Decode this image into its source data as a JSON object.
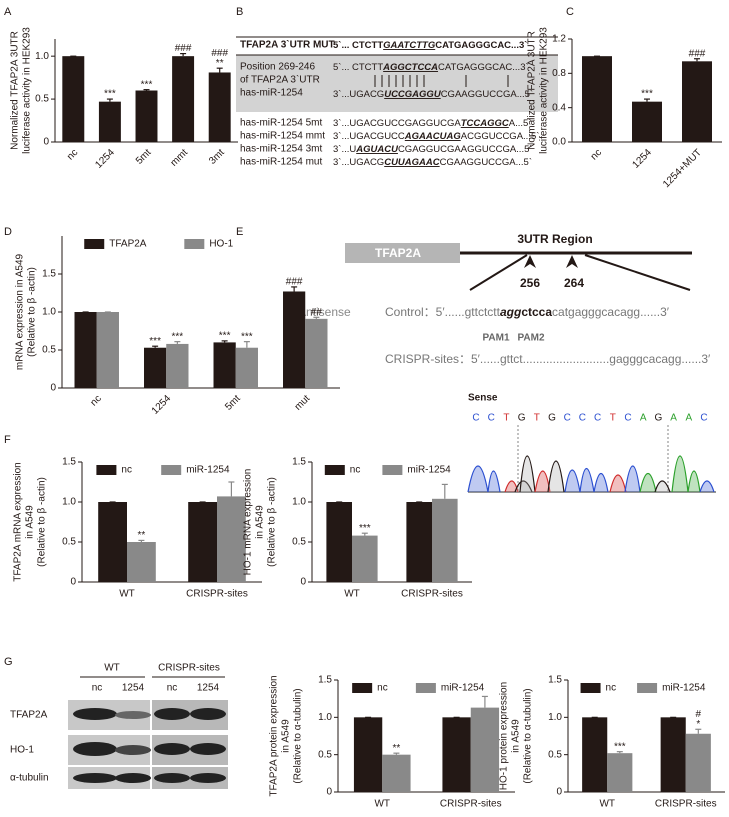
{
  "panel_labels": [
    "A",
    "B",
    "C",
    "D",
    "E",
    "F",
    "G"
  ],
  "chart_data": [
    {
      "type": "bar",
      "ylabel": [
        "Normalized TFAP2A 3UTR",
        "luciferase activity in HEK293"
      ],
      "categories": [
        "nc",
        "1254",
        "5mt",
        "mmt",
        "3mt"
      ],
      "series": [
        {
          "color": "#231815",
          "values": [
            1.0,
            0.47,
            0.6,
            1.0,
            0.81
          ],
          "errors": [
            0,
            0.03,
            0.01,
            0.03,
            0.05
          ],
          "sig": [
            null,
            "***",
            "***",
            "###",
            [
              "###",
              "**"
            ]
          ]
        }
      ],
      "ylim": [
        0,
        1.2
      ],
      "yticks": [
        0,
        0.5,
        {
          "value": 1,
          "label": "1.0"
        }
      ]
    },
    {
      "type": "bar",
      "ylabel": [
        "Normalized TFAP2A 3UTR",
        "luciferase activity in HEK293"
      ],
      "categories": [
        "nc",
        "1254",
        "1254+MUT"
      ],
      "series": [
        {
          "color": "#231815",
          "values": [
            1.0,
            0.47,
            0.94
          ],
          "errors": [
            0,
            0.03,
            0.03
          ],
          "sig": [
            null,
            "***",
            "###"
          ]
        }
      ],
      "ylim": [
        0,
        1.2
      ],
      "yticks": [
        {
          "value": 0,
          "label": "0.0"
        },
        0.4,
        0.8,
        1.2
      ]
    },
    {
      "type": "bar",
      "ylabel": [
        "mRNA expression in A549",
        "(Relative to β -actin)"
      ],
      "categories": [
        "nc",
        "1254",
        "5mt",
        "mut"
      ],
      "legend": "top",
      "series": [
        {
          "name": "TFAP2A",
          "color": "#231815",
          "values": [
            1.0,
            0.53,
            0.6,
            1.27
          ],
          "errors": [
            0,
            0.02,
            0.02,
            0.06
          ],
          "sig": [
            null,
            "***",
            "***",
            "###"
          ]
        },
        {
          "name": "HO-1",
          "color": "#898989",
          "values": [
            1.0,
            0.58,
            0.53,
            0.91
          ],
          "errors": [
            0,
            0.03,
            0.08,
            0.02
          ],
          "sig": [
            null,
            "***",
            "***",
            "##"
          ]
        }
      ],
      "ylim": [
        0,
        2.0
      ],
      "yticks": [
        0,
        0.5,
        {
          "value": 1,
          "label": "1.0"
        },
        1.5
      ]
    },
    {
      "type": "bar",
      "ylabel": [
        "TFAP2A mRNA expression",
        "in A549",
        "(Relative to β -actin)"
      ],
      "categories": [
        "WT",
        "CRISPR-sites"
      ],
      "legend": "top",
      "series": [
        {
          "name": "nc",
          "color": "#231815",
          "values": [
            1.0,
            1.0
          ],
          "errors": [
            0,
            0
          ],
          "sig": [
            null,
            null
          ]
        },
        {
          "name": "miR-1254",
          "color": "#898989",
          "values": [
            0.5,
            1.07
          ],
          "errors": [
            0.02,
            0.18
          ],
          "sig": [
            "**",
            null
          ]
        }
      ],
      "ylim": [
        0,
        1.5
      ],
      "yticks": [
        0,
        0.5,
        {
          "value": 1,
          "label": "1.0"
        },
        1.5
      ]
    },
    {
      "type": "bar",
      "ylabel": [
        "HO-1 mRNA expression",
        "in A549",
        "(Relative to β -actin)"
      ],
      "categories": [
        "WT",
        "CRISPR-sites"
      ],
      "legend": "top",
      "series": [
        {
          "name": "nc",
          "color": "#231815",
          "values": [
            1.0,
            1.0
          ],
          "errors": [
            0,
            0
          ],
          "sig": [
            null,
            null
          ]
        },
        {
          "name": "miR-1254",
          "color": "#898989",
          "values": [
            0.58,
            1.04
          ],
          "errors": [
            0.03,
            0.18
          ],
          "sig": [
            "***",
            null
          ]
        }
      ],
      "ylim": [
        0,
        1.5
      ],
      "yticks": [
        0,
        0.5,
        {
          "value": 1,
          "label": "1.0"
        },
        1.5
      ]
    },
    {
      "type": "bar",
      "ylabel": [
        "TFAP2A protein expression",
        "in A549",
        "(Relative to α-tubulin)"
      ],
      "categories": [
        "WT",
        "CRISPR-sites"
      ],
      "legend": "top",
      "series": [
        {
          "name": "nc",
          "color": "#231815",
          "values": [
            1.0,
            1.0
          ],
          "errors": [
            0,
            0
          ],
          "sig": [
            null,
            null
          ]
        },
        {
          "name": "miR-1254",
          "color": "#898989",
          "values": [
            0.5,
            1.13
          ],
          "errors": [
            0.02,
            0.15
          ],
          "sig": [
            "**",
            null
          ]
        }
      ],
      "ylim": [
        0,
        1.5
      ],
      "yticks": [
        0,
        0.5,
        {
          "value": 1,
          "label": "1.0"
        },
        1.5
      ]
    },
    {
      "type": "bar",
      "ylabel": [
        "HO-1 protein expression",
        "in A549",
        "(Relative to α-tubulin)"
      ],
      "categories": [
        "WT",
        "CRISPR-sites"
      ],
      "legend": "top",
      "series": [
        {
          "name": "nc",
          "color": "#231815",
          "values": [
            1.0,
            1.0
          ],
          "errors": [
            0,
            0
          ],
          "sig": [
            null,
            null
          ]
        },
        {
          "name": "miR-1254",
          "color": "#898989",
          "values": [
            0.52,
            0.78
          ],
          "errors": [
            0.02,
            0.06
          ],
          "sig": [
            "***",
            [
              "#",
              "*"
            ]
          ]
        }
      ],
      "ylim": [
        0,
        1.5
      ],
      "yticks": [
        0,
        0.5,
        {
          "value": 1,
          "label": "1.0"
        },
        1.5
      ]
    }
  ],
  "sequence_panel": {
    "header": {
      "name": "TFAP2A 3`UTR MUT",
      "seq": [
        "5`... CTCTT",
        "GAATCTTG",
        "CATGAGGGCAC...3`"
      ]
    },
    "position_label": [
      "Position 269-246",
      "of TFAP2A 3`UTR",
      "has-miR-1254"
    ],
    "target_seq": [
      "5`... CTCTT",
      "AGGCTCCA",
      "CATGAGGGCAC...3`"
    ],
    "mirna_seq": [
      "3`...UGACG",
      "UCCGAGGU",
      "CGAAGGUCCGA...5`"
    ],
    "mutants": [
      {
        "name": "has-miR-1254 5mt",
        "seq": [
          "3`...UGACGUCCGAGGUCGA",
          "TCCAGGC",
          "A...5`"
        ]
      },
      {
        "name": "has-miR-1254 mmt",
        "seq": [
          "3`...UGACGUCC",
          "AGAACUAG",
          "ACGGUCCGA...5`"
        ]
      },
      {
        "name": "has-miR-1254 3mt",
        "seq": [
          "3`...U",
          "AGUACU",
          "CGAGGUCGAAGGUCCGA...5`"
        ]
      },
      {
        "name": "has-miR-1254 mut",
        "seq": [
          "3`...UGACG",
          "CUUAGAAC",
          "CGAAGGUCCGA...5`"
        ]
      }
    ]
  },
  "diagram": {
    "gene": "TFAP2A",
    "region": "3UTR Region",
    "positions": [
      "256",
      "264"
    ],
    "strand": "Antisense",
    "control": [
      "Control：5′......gttctctt",
      "agg",
      "ctcca",
      "catgagggcacagg......3′"
    ],
    "pams": [
      "PAM1",
      "PAM2"
    ],
    "crispr": "CRISPR-sites：5′......gttct..........................gagggcacagg......3′",
    "sense_label": "Sense",
    "bases": [
      "C",
      "C",
      "T",
      "G",
      "T",
      "G",
      "C",
      "C",
      "C",
      "T",
      "C",
      "A",
      "G",
      "A",
      "A",
      "C"
    ]
  },
  "western_blot": {
    "groups": [
      "WT",
      "CRISPR-sites"
    ],
    "lanes": [
      "nc",
      "1254",
      "nc",
      "1254"
    ],
    "proteins": [
      "TFAP2A",
      "HO-1",
      "α-tubulin"
    ]
  }
}
